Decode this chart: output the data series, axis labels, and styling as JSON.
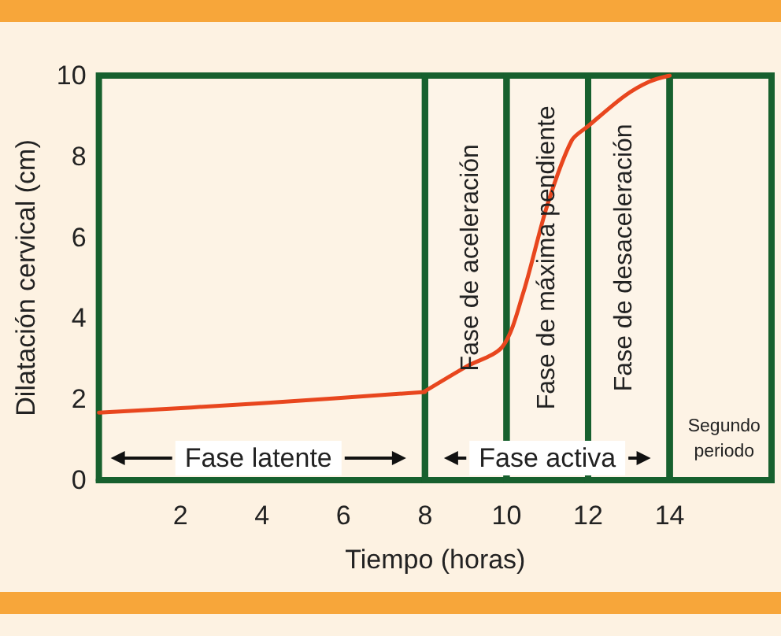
{
  "chart_data": {
    "type": "line",
    "xlabel": "Tiempo (horas)",
    "ylabel": "Dilatación cervical (cm)",
    "series": [
      {
        "color": "#e8461e",
        "x": [
          0,
          4,
          8
        ],
        "values": [
          1.67,
          1.9,
          2.18
        ]
      },
      {
        "color": "#e8461e",
        "x": [
          8,
          9,
          9.9,
          10.4,
          11,
          11.6,
          12,
          12.9,
          13.5,
          14
        ],
        "values": [
          2.2,
          2.8,
          3.3,
          4.6,
          6.8,
          8.4,
          8.75,
          9.5,
          9.85,
          10
        ]
      }
    ],
    "xlim": [
      0,
      16.5
    ],
    "ylim": [
      0,
      10
    ],
    "xticks": [
      2,
      4,
      6,
      8,
      10,
      12,
      14
    ],
    "yticks": [
      0,
      2,
      4,
      6,
      8,
      10
    ],
    "bands": [
      {
        "axis": "x",
        "from": 0,
        "to": 8,
        "label": "Fase latente",
        "color": "#17602e"
      },
      {
        "axis": "x",
        "from": 8,
        "to": 14,
        "label": "Fase activa",
        "color": "#17602e"
      },
      {
        "axis": "x",
        "from": 14,
        "to": 16.5,
        "label": "Segundo periodo",
        "color": "#17602e"
      },
      {
        "axis": "x",
        "from": 8,
        "to": 10,
        "label": "Fase de aceleración",
        "color": "#17602e"
      },
      {
        "axis": "x",
        "from": 10,
        "to": 12,
        "label": "Fase de máxima pendiente",
        "color": "#17602e"
      },
      {
        "axis": "x",
        "from": 12,
        "to": 14,
        "label": "Fase de desaceleración",
        "color": "#17602e"
      }
    ],
    "grid": false,
    "marker": "none",
    "line_style": "solid"
  }
}
